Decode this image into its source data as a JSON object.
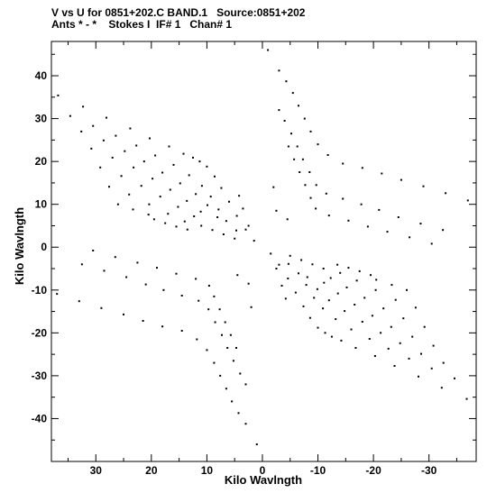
{
  "header": {
    "line1": "V vs U for 0851+202.C BAND.1   Source:0851+202",
    "line2": "Ants * - *    Stokes I  IF# 1   Chan# 1"
  },
  "chart_data": {
    "type": "scatter",
    "title": "V vs U for 0851+202.C BAND.1   Source:0851+202",
    "subtitle": "Ants * - *    Stokes I  IF# 1   Chan# 1",
    "xlabel": "Kilo Wavlngth",
    "ylabel": "Kilo Wavlngth",
    "xlim": [
      38,
      -38.5
    ],
    "ylim": [
      -50,
      48
    ],
    "x_reversed": true,
    "grid": false,
    "xticks": [
      30,
      20,
      10,
      0,
      -10,
      -20,
      -30
    ],
    "yticks": [
      40,
      30,
      20,
      10,
      0,
      -10,
      -20,
      -30,
      -40
    ],
    "xtick_labels": [
      "30",
      "20",
      "10",
      "0",
      "-10",
      "-20",
      "-30"
    ],
    "ytick_labels": [
      "40",
      "30",
      "20",
      "10",
      "0",
      "-10",
      "-20",
      "-30",
      "-40"
    ],
    "series": [
      {
        "points": [
          [
            36.8,
            35.4
          ],
          [
            32.3,
            32.8
          ],
          [
            28.1,
            30.2
          ],
          [
            23.8,
            27.7
          ],
          [
            20.3,
            25.4
          ],
          [
            16.8,
            23.5
          ],
          [
            14.2,
            21.8
          ],
          [
            12.5,
            20.9
          ],
          [
            11.3,
            20.0
          ],
          [
            10.0,
            18.8
          ],
          [
            8.6,
            16.5
          ],
          [
            7.4,
            13.8
          ],
          [
            6.0,
            10.6
          ],
          [
            4.6,
            7.3
          ],
          [
            3.0,
            4.1
          ],
          [
            1.5,
            1.5
          ],
          [
            34.6,
            30.6
          ],
          [
            30.5,
            28.3
          ],
          [
            26.4,
            26.0
          ],
          [
            22.7,
            23.7
          ],
          [
            19.3,
            21.4
          ],
          [
            16.0,
            19.2
          ],
          [
            13.2,
            16.8
          ],
          [
            10.9,
            14.3
          ],
          [
            9.3,
            11.8
          ],
          [
            7.9,
            8.8
          ],
          [
            6.5,
            6.1
          ],
          [
            4.7,
            3.9
          ],
          [
            32.6,
            27.0
          ],
          [
            28.6,
            24.9
          ],
          [
            24.8,
            22.4
          ],
          [
            21.3,
            20.0
          ],
          [
            18.0,
            17.4
          ],
          [
            14.8,
            14.9
          ],
          [
            12.0,
            12.4
          ],
          [
            9.9,
            9.8
          ],
          [
            8.1,
            7.0
          ],
          [
            30.8,
            23.0
          ],
          [
            27.0,
            20.9
          ],
          [
            23.2,
            18.6
          ],
          [
            19.8,
            16.0
          ],
          [
            16.6,
            13.4
          ],
          [
            13.6,
            10.8
          ],
          [
            11.1,
            8.3
          ],
          [
            29.2,
            18.6
          ],
          [
            25.4,
            16.6
          ],
          [
            21.8,
            14.3
          ],
          [
            18.4,
            11.8
          ],
          [
            15.2,
            9.4
          ],
          [
            12.3,
            7.2
          ],
          [
            27.6,
            14.1
          ],
          [
            24.0,
            12.3
          ],
          [
            20.4,
            10.0
          ],
          [
            17.0,
            7.8
          ],
          [
            14.0,
            6.0
          ],
          [
            11.0,
            5.0
          ],
          [
            9.0,
            4.0
          ],
          [
            7.0,
            3.0
          ],
          [
            5.0,
            2.0
          ],
          [
            26.0,
            10.0
          ],
          [
            23.3,
            8.8
          ],
          [
            20.5,
            7.6
          ],
          [
            19.5,
            6.5
          ],
          [
            17.5,
            5.6
          ],
          [
            15.5,
            4.8
          ],
          [
            13.5,
            4.1
          ],
          [
            2.5,
            5.0
          ],
          [
            3.5,
            9.0
          ],
          [
            4.2,
            12.0
          ],
          [
            -36.8,
            -35.4
          ],
          [
            -32.3,
            -32.8
          ],
          [
            -28.1,
            -30.2
          ],
          [
            -23.8,
            -27.7
          ],
          [
            -20.3,
            -25.4
          ],
          [
            -16.8,
            -23.5
          ],
          [
            -14.2,
            -21.8
          ],
          [
            -12.5,
            -20.9
          ],
          [
            -11.3,
            -20.0
          ],
          [
            -10.0,
            -18.8
          ],
          [
            -8.6,
            -16.5
          ],
          [
            -7.4,
            -13.8
          ],
          [
            -6.0,
            -10.6
          ],
          [
            -4.6,
            -7.3
          ],
          [
            -3.0,
            -4.1
          ],
          [
            -1.5,
            -1.5
          ],
          [
            -34.6,
            -30.6
          ],
          [
            -30.5,
            -28.3
          ],
          [
            -26.4,
            -26.0
          ],
          [
            -22.7,
            -23.7
          ],
          [
            -19.3,
            -21.4
          ],
          [
            -16.0,
            -19.2
          ],
          [
            -13.2,
            -16.8
          ],
          [
            -10.9,
            -14.3
          ],
          [
            -9.3,
            -11.8
          ],
          [
            -7.9,
            -8.8
          ],
          [
            -6.5,
            -6.1
          ],
          [
            -4.7,
            -3.9
          ],
          [
            -32.6,
            -27.0
          ],
          [
            -28.6,
            -24.9
          ],
          [
            -24.8,
            -22.4
          ],
          [
            -21.3,
            -20.0
          ],
          [
            -18.0,
            -17.4
          ],
          [
            -14.8,
            -14.9
          ],
          [
            -12.0,
            -12.4
          ],
          [
            -9.9,
            -9.8
          ],
          [
            -8.1,
            -7.0
          ],
          [
            -30.8,
            -23.0
          ],
          [
            -27.0,
            -20.9
          ],
          [
            -23.2,
            -18.6
          ],
          [
            -19.8,
            -16.0
          ],
          [
            -16.6,
            -13.4
          ],
          [
            -13.6,
            -10.8
          ],
          [
            -11.1,
            -8.3
          ],
          [
            -29.2,
            -18.6
          ],
          [
            -25.4,
            -16.6
          ],
          [
            -21.8,
            -14.3
          ],
          [
            -18.4,
            -11.8
          ],
          [
            -15.2,
            -9.4
          ],
          [
            -12.3,
            -7.2
          ],
          [
            -27.6,
            -14.1
          ],
          [
            -24.0,
            -12.3
          ],
          [
            -20.4,
            -10.0
          ],
          [
            -17.0,
            -7.8
          ],
          [
            -14.0,
            -6.0
          ],
          [
            -11.0,
            -5.0
          ],
          [
            -9.0,
            -4.0
          ],
          [
            -7.0,
            -3.0
          ],
          [
            -5.0,
            -2.0
          ],
          [
            -26.0,
            -10.0
          ],
          [
            -23.3,
            -8.8
          ],
          [
            -20.5,
            -7.6
          ],
          [
            -19.5,
            -6.5
          ],
          [
            -17.5,
            -5.6
          ],
          [
            -15.5,
            -4.8
          ],
          [
            -13.5,
            -4.1
          ],
          [
            -2.5,
            -5.0
          ],
          [
            -3.5,
            -9.0
          ],
          [
            -4.2,
            -12.0
          ],
          [
            37.0,
            -10.9
          ],
          [
            33.0,
            -12.6
          ],
          [
            29.0,
            -14.2
          ],
          [
            25.0,
            -15.7
          ],
          [
            21.5,
            -17.2
          ],
          [
            18.0,
            -18.5
          ],
          [
            14.5,
            -19.5
          ],
          [
            11.8,
            -21.5
          ],
          [
            10.0,
            -24.0
          ],
          [
            8.7,
            -27.0
          ],
          [
            7.6,
            -30.0
          ],
          [
            6.5,
            -33.0
          ],
          [
            5.5,
            -36.0
          ],
          [
            4.3,
            -38.7
          ],
          [
            3.0,
            -41.2
          ],
          [
            32.5,
            -4.0
          ],
          [
            28.5,
            -5.5
          ],
          [
            24.5,
            -7.0
          ],
          [
            21.0,
            -8.7
          ],
          [
            17.8,
            -10.0
          ],
          [
            14.5,
            -11.3
          ],
          [
            11.5,
            -12.5
          ],
          [
            9.7,
            -14.5
          ],
          [
            8.5,
            -17.5
          ],
          [
            7.3,
            -20.5
          ],
          [
            6.3,
            -23.5
          ],
          [
            5.2,
            -26.5
          ],
          [
            4.0,
            -29.5
          ],
          [
            3.0,
            -32.0
          ],
          [
            30.5,
            -0.8
          ],
          [
            26.5,
            -2.3
          ],
          [
            22.5,
            -3.6
          ],
          [
            19.0,
            -4.8
          ],
          [
            15.5,
            -6.2
          ],
          [
            12.0,
            -7.4
          ],
          [
            9.6,
            -9.0
          ],
          [
            8.7,
            -11.5
          ],
          [
            7.7,
            -14.5
          ],
          [
            6.7,
            -17.5
          ],
          [
            5.7,
            -20.5
          ],
          [
            4.7,
            -23.5
          ],
          [
            2.5,
            -8.5
          ],
          [
            2.0,
            -14.0
          ],
          [
            -37.0,
            10.9
          ],
          [
            -33.0,
            12.6
          ],
          [
            -29.0,
            14.2
          ],
          [
            -25.0,
            15.7
          ],
          [
            -21.5,
            17.2
          ],
          [
            -18.0,
            18.5
          ],
          [
            -14.5,
            19.5
          ],
          [
            -11.8,
            21.5
          ],
          [
            -10.0,
            24.0
          ],
          [
            -8.7,
            27.0
          ],
          [
            -7.6,
            30.0
          ],
          [
            -6.5,
            33.0
          ],
          [
            -5.5,
            36.0
          ],
          [
            -4.3,
            38.7
          ],
          [
            -3.0,
            41.2
          ],
          [
            -32.5,
            4.0
          ],
          [
            -28.5,
            5.5
          ],
          [
            -24.5,
            7.0
          ],
          [
            -21.0,
            8.7
          ],
          [
            -17.8,
            10.0
          ],
          [
            -14.5,
            11.3
          ],
          [
            -11.5,
            12.5
          ],
          [
            -9.7,
            14.5
          ],
          [
            -8.5,
            17.5
          ],
          [
            -7.3,
            20.5
          ],
          [
            -6.3,
            23.5
          ],
          [
            -5.2,
            26.5
          ],
          [
            -4.0,
            29.5
          ],
          [
            -3.0,
            32.0
          ],
          [
            -30.5,
            0.8
          ],
          [
            -26.5,
            2.3
          ],
          [
            -22.5,
            3.6
          ],
          [
            -19.0,
            4.8
          ],
          [
            -15.5,
            6.2
          ],
          [
            -12.0,
            7.4
          ],
          [
            -9.6,
            9.0
          ],
          [
            -8.7,
            11.5
          ],
          [
            -7.7,
            14.5
          ],
          [
            -6.7,
            17.5
          ],
          [
            -5.7,
            20.5
          ],
          [
            -4.7,
            23.5
          ],
          [
            -2.5,
            8.5
          ],
          [
            -2.0,
            14.0
          ],
          [
            1.0,
            -46.0
          ],
          [
            -1.0,
            46.0
          ],
          [
            4.5,
            -6.5
          ],
          [
            -4.5,
            6.5
          ]
        ]
      }
    ]
  }
}
